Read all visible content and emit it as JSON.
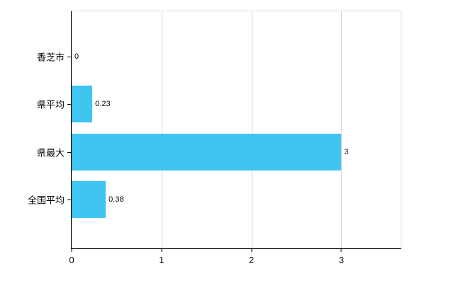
{
  "chart_data": {
    "type": "bar",
    "orientation": "horizontal",
    "title": "",
    "categories": [
      "香芝市",
      "県平均",
      "県最大",
      "全国平均"
    ],
    "values": [
      0,
      0.23,
      3,
      0.38
    ],
    "value_labels": [
      "0",
      "0.23",
      "3",
      "0.38"
    ],
    "xticks": [
      0,
      1,
      2,
      3
    ],
    "xtick_labels": [
      "0",
      "1",
      "2",
      "3"
    ],
    "xlim": [
      0,
      3.66
    ],
    "grid": true,
    "legend": "none",
    "bar_color": "#3ec5f0",
    "grid_color": "#d9d9d9",
    "axis_color": "#000000",
    "background_color": "#ffffff"
  }
}
